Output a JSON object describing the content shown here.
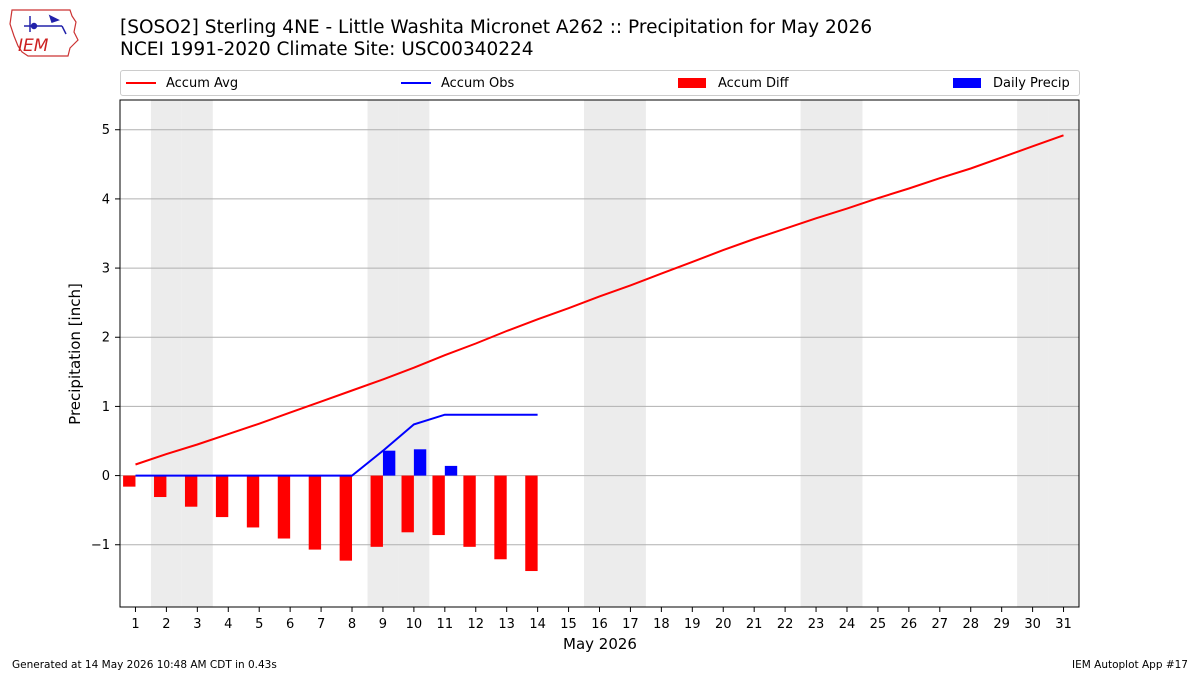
{
  "header": {
    "title_line1": "[SOSO2] Sterling 4NE - Little Washita Micronet A262 :: Precipitation for May 2026",
    "title_line2": "NCEI 1991-2020 Climate Site: USC00340224"
  },
  "logo": {
    "text": "IEM"
  },
  "footer": {
    "generated": "Generated at 14 May 2026 10:48 AM CDT in 0.43s",
    "app": "IEM Autoplot App #17"
  },
  "colors": {
    "avg": "#ff0000",
    "obs": "#0000ff",
    "diff": "#ff0000",
    "daily": "#0000ff",
    "weekend": "#ececec",
    "grid": "#b0b0b0"
  },
  "chart_data": {
    "type": "bar",
    "xlabel": "May 2026",
    "ylabel": "Precipitation [inch]",
    "ylim": [
      -1.9,
      5.43
    ],
    "xlim": [
      0.5,
      31.5
    ],
    "yticks": [
      -1,
      0,
      1,
      2,
      3,
      4,
      5
    ],
    "ytick_labels": [
      "−1",
      "0",
      "1",
      "2",
      "3",
      "4",
      "5"
    ],
    "days": [
      1,
      2,
      3,
      4,
      5,
      6,
      7,
      8,
      9,
      10,
      11,
      12,
      13,
      14,
      15,
      16,
      17,
      18,
      19,
      20,
      21,
      22,
      23,
      24,
      25,
      26,
      27,
      28,
      29,
      30,
      31
    ],
    "weekend_days": [
      2,
      3,
      9,
      10,
      16,
      17,
      23,
      24,
      30,
      31
    ],
    "legend": {
      "position": "top",
      "entries": [
        "Accum Avg",
        "Accum Obs",
        "Accum Diff",
        "Daily Precip"
      ]
    },
    "series": [
      {
        "name": "Accum Avg",
        "kind": "line",
        "values": [
          0.16,
          0.31,
          0.45,
          0.6,
          0.75,
          0.91,
          1.07,
          1.23,
          1.39,
          1.56,
          1.74,
          1.91,
          2.09,
          2.26,
          2.42,
          2.59,
          2.75,
          2.92,
          3.09,
          3.26,
          3.42,
          3.57,
          3.72,
          3.86,
          4.01,
          4.15,
          4.3,
          4.44,
          4.6,
          4.76,
          4.92
        ]
      },
      {
        "name": "Accum Obs",
        "kind": "line",
        "values": [
          0,
          0,
          0,
          0,
          0,
          0,
          0,
          0,
          0.36,
          0.74,
          0.88,
          0.88,
          0.88,
          0.88
        ]
      },
      {
        "name": "Accum Diff",
        "kind": "bar",
        "values": [
          -0.16,
          -0.31,
          -0.45,
          -0.6,
          -0.75,
          -0.91,
          -1.07,
          -1.23,
          -1.03,
          -0.82,
          -0.86,
          -1.03,
          -1.21,
          -1.38
        ]
      },
      {
        "name": "Daily Precip",
        "kind": "bar",
        "values": [
          0,
          0,
          0,
          0,
          0,
          0,
          0,
          0,
          0.36,
          0.38,
          0.14,
          0,
          0,
          0
        ]
      }
    ]
  }
}
